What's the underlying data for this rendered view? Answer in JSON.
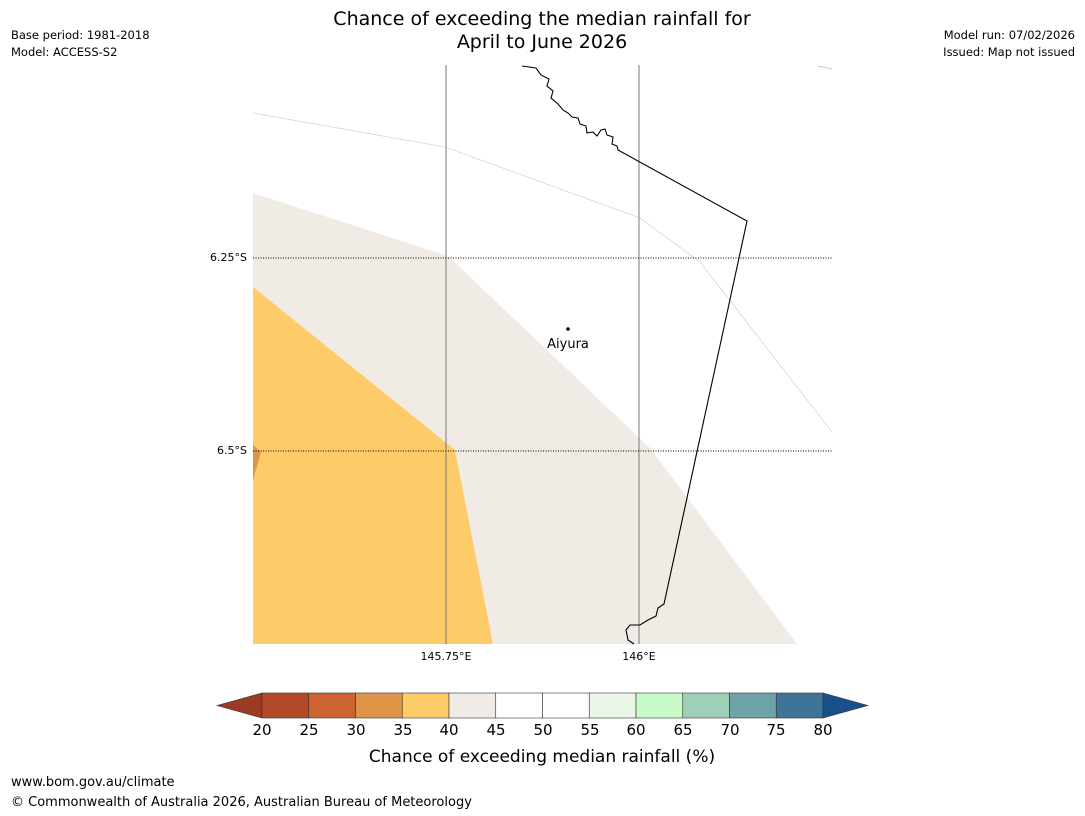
{
  "header": {
    "title_line1": "Chance of exceeding the median rainfall for",
    "title_line2": "April to June 2026",
    "base_period": "Base period: 1981-2018",
    "model": "Model: ACCESS-S2",
    "model_run": "Model run: 07/02/2026",
    "issued": "Issued: Map not issued"
  },
  "map": {
    "lat_labels": [
      "6.25°S",
      "6.5°S"
    ],
    "lon_labels": [
      "145.75°E",
      "146°E"
    ],
    "place": {
      "name": "Aiyura"
    }
  },
  "legend": {
    "title": "Chance of exceeding median rainfall (%)",
    "ticks": [
      "20",
      "25",
      "30",
      "35",
      "40",
      "45",
      "50",
      "55",
      "60",
      "65",
      "70",
      "75",
      "80"
    ],
    "colors": [
      "#9b3b24",
      "#b34a28",
      "#cd6533",
      "#e09447",
      "#fecb69",
      "#f0ebe5",
      "#ffffff",
      "#ffffff",
      "#eaf6e8",
      "#c8fbc8",
      "#9ed0b7",
      "#6ea4a7",
      "#3d7497",
      "#18508c"
    ]
  },
  "footer": {
    "url": "www.bom.gov.au/climate",
    "copyright": "© Commonwealth of Australia 2026, Australian Bureau of Meteorology"
  }
}
